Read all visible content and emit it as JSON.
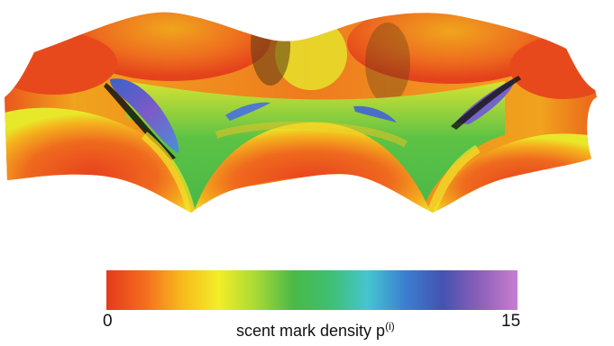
{
  "chart_data": {
    "type": "heatmap",
    "title": "",
    "colorbar": {
      "label_text": "scent mark density  p",
      "label_superscript": "(i)",
      "min": 0,
      "max": 15,
      "tick_labels": [
        "0",
        "15"
      ],
      "colormap": [
        "#e53a1c",
        "#f36b1e",
        "#f7b81d",
        "#f2ee27",
        "#a8d936",
        "#4ab947",
        "#3fbf73",
        "#46c4d1",
        "#3b7fd0",
        "#4452b0",
        "#8d60b9",
        "#c77fcf"
      ]
    },
    "surface_colors": {
      "peak": "#e8401d",
      "ridge": "#f2a51d",
      "mid": "#c9e134",
      "low": "#5cc245",
      "trough": "#4b7fc9",
      "deep": "#7a59c4",
      "shadow": "#1c1e14"
    }
  }
}
